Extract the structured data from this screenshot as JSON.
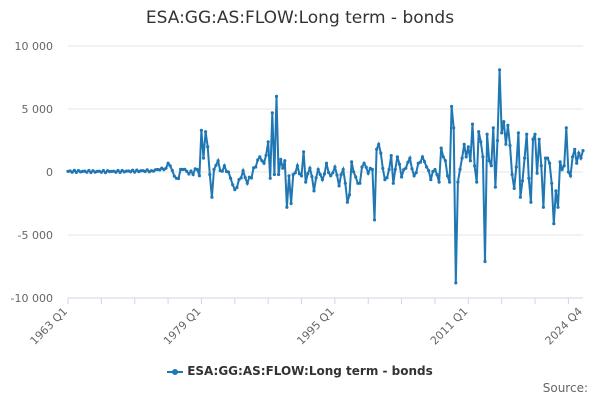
{
  "chart_data": {
    "type": "line",
    "title": "ESA:GG:AS:FLOW:Long term - bonds",
    "xlabel": "",
    "ylabel": "",
    "x_range": [
      "1963 Q1",
      "2024 Q4"
    ],
    "ylim": [
      -10000,
      10000
    ],
    "y_ticks": [
      {
        "value": 10000,
        "label": "10 000"
      },
      {
        "value": 5000,
        "label": "5 000"
      },
      {
        "value": 0,
        "label": "0"
      },
      {
        "value": -5000,
        "label": "-5 000"
      },
      {
        "value": -10000,
        "label": "-10 000"
      }
    ],
    "x_ticks": [
      {
        "t": 0,
        "label": "1963 Q1"
      },
      {
        "t": 64,
        "label": "1979 Q1"
      },
      {
        "t": 128,
        "label": "1995 Q1"
      },
      {
        "t": 192,
        "label": "2011 Q1"
      },
      {
        "t": 247,
        "label": "2024 Q4"
      }
    ],
    "grid": true,
    "legend_position": "bottom-center",
    "series": [
      {
        "name": "ESA:GG:AS:FLOW:Long term - bonds",
        "color": "#1f77b4",
        "key_points": [
          {
            "t": 0,
            "y": 50
          },
          {
            "t": 20,
            "y": 30
          },
          {
            "t": 40,
            "y": 100
          },
          {
            "t": 47,
            "y": 300
          },
          {
            "t": 48,
            "y": 700
          },
          {
            "t": 52,
            "y": -500
          },
          {
            "t": 55,
            "y": 200
          },
          {
            "t": 60,
            "y": -200
          },
          {
            "t": 62,
            "y": 200
          },
          {
            "t": 63,
            "y": -300
          },
          {
            "t": 64,
            "y": 3300
          },
          {
            "t": 65,
            "y": 1100
          },
          {
            "t": 66,
            "y": 3200
          },
          {
            "t": 67,
            "y": 2000
          },
          {
            "t": 68,
            "y": -200
          },
          {
            "t": 69,
            "y": -2000
          },
          {
            "t": 70,
            "y": 200
          },
          {
            "t": 72,
            "y": 900
          },
          {
            "t": 73,
            "y": 100
          },
          {
            "t": 75,
            "y": 500
          },
          {
            "t": 77,
            "y": 0
          },
          {
            "t": 80,
            "y": -1400
          },
          {
            "t": 82,
            "y": -600
          },
          {
            "t": 84,
            "y": 100
          },
          {
            "t": 86,
            "y": -900
          },
          {
            "t": 90,
            "y": 400
          },
          {
            "t": 92,
            "y": 1200
          },
          {
            "t": 94,
            "y": 700
          },
          {
            "t": 96,
            "y": 2400
          },
          {
            "t": 97,
            "y": -500
          },
          {
            "t": 98,
            "y": 4700
          },
          {
            "t": 99,
            "y": -200
          },
          {
            "t": 100,
            "y": 6000
          },
          {
            "t": 101,
            "y": -200
          },
          {
            "t": 102,
            "y": 1000
          },
          {
            "t": 103,
            "y": 300
          },
          {
            "t": 104,
            "y": 900
          },
          {
            "t": 105,
            "y": -2800
          },
          {
            "t": 106,
            "y": -300
          },
          {
            "t": 107,
            "y": -2500
          },
          {
            "t": 108,
            "y": -200
          },
          {
            "t": 110,
            "y": 500
          },
          {
            "t": 112,
            "y": -300
          },
          {
            "t": 113,
            "y": 1600
          },
          {
            "t": 114,
            "y": -800
          },
          {
            "t": 116,
            "y": 300
          },
          {
            "t": 118,
            "y": -1500
          },
          {
            "t": 120,
            "y": 200
          },
          {
            "t": 122,
            "y": -600
          },
          {
            "t": 124,
            "y": 700
          },
          {
            "t": 126,
            "y": -300
          },
          {
            "t": 128,
            "y": 400
          },
          {
            "t": 130,
            "y": -1100
          },
          {
            "t": 132,
            "y": 200
          },
          {
            "t": 134,
            "y": -2400
          },
          {
            "t": 135,
            "y": -1800
          },
          {
            "t": 136,
            "y": 800
          },
          {
            "t": 138,
            "y": -400
          },
          {
            "t": 140,
            "y": -900
          },
          {
            "t": 141,
            "y": 400
          },
          {
            "t": 142,
            "y": 700
          },
          {
            "t": 144,
            "y": -100
          },
          {
            "t": 146,
            "y": 200
          },
          {
            "t": 147,
            "y": -3800
          },
          {
            "t": 148,
            "y": 1800
          },
          {
            "t": 149,
            "y": 2200
          },
          {
            "t": 150,
            "y": 1500
          },
          {
            "t": 152,
            "y": -600
          },
          {
            "t": 154,
            "y": 200
          },
          {
            "t": 155,
            "y": 1300
          },
          {
            "t": 156,
            "y": -900
          },
          {
            "t": 158,
            "y": 1200
          },
          {
            "t": 160,
            "y": -400
          },
          {
            "t": 162,
            "y": 300
          },
          {
            "t": 164,
            "y": 1100
          },
          {
            "t": 166,
            "y": -300
          },
          {
            "t": 168,
            "y": 700
          },
          {
            "t": 170,
            "y": 1200
          },
          {
            "t": 172,
            "y": 400
          },
          {
            "t": 174,
            "y": -600
          },
          {
            "t": 176,
            "y": 200
          },
          {
            "t": 178,
            "y": -800
          },
          {
            "t": 179,
            "y": 1900
          },
          {
            "t": 180,
            "y": 1200
          },
          {
            "t": 181,
            "y": 900
          },
          {
            "t": 182,
            "y": -300
          },
          {
            "t": 183,
            "y": -800
          },
          {
            "t": 184,
            "y": 5200
          },
          {
            "t": 185,
            "y": 3500
          },
          {
            "t": 186,
            "y": -8800
          },
          {
            "t": 187,
            "y": -800
          },
          {
            "t": 188,
            "y": 200
          },
          {
            "t": 189,
            "y": 1100
          },
          {
            "t": 190,
            "y": 2200
          },
          {
            "t": 191,
            "y": 1200
          },
          {
            "t": 192,
            "y": 2000
          },
          {
            "t": 193,
            "y": 900
          },
          {
            "t": 194,
            "y": 3800
          },
          {
            "t": 195,
            "y": 500
          },
          {
            "t": 196,
            "y": -800
          },
          {
            "t": 197,
            "y": 3200
          },
          {
            "t": 198,
            "y": 2400
          },
          {
            "t": 199,
            "y": 1200
          },
          {
            "t": 200,
            "y": -7100
          },
          {
            "t": 201,
            "y": 3000
          },
          {
            "t": 202,
            "y": 900
          },
          {
            "t": 203,
            "y": 500
          },
          {
            "t": 204,
            "y": 3500
          },
          {
            "t": 205,
            "y": -1200
          },
          {
            "t": 206,
            "y": 2500
          },
          {
            "t": 207,
            "y": 8100
          },
          {
            "t": 208,
            "y": 3100
          },
          {
            "t": 209,
            "y": 4000
          },
          {
            "t": 210,
            "y": 2200
          },
          {
            "t": 211,
            "y": 3700
          },
          {
            "t": 212,
            "y": 2100
          },
          {
            "t": 213,
            "y": -200
          },
          {
            "t": 214,
            "y": -1300
          },
          {
            "t": 215,
            "y": 400
          },
          {
            "t": 216,
            "y": 3100
          },
          {
            "t": 217,
            "y": -2000
          },
          {
            "t": 218,
            "y": -700
          },
          {
            "t": 219,
            "y": 1100
          },
          {
            "t": 220,
            "y": 3000
          },
          {
            "t": 221,
            "y": -500
          },
          {
            "t": 222,
            "y": -2400
          },
          {
            "t": 223,
            "y": 2600
          },
          {
            "t": 224,
            "y": 3000
          },
          {
            "t": 225,
            "y": -100
          },
          {
            "t": 226,
            "y": 2600
          },
          {
            "t": 227,
            "y": 500
          },
          {
            "t": 228,
            "y": -2800
          },
          {
            "t": 229,
            "y": 1100
          },
          {
            "t": 230,
            "y": 1100
          },
          {
            "t": 231,
            "y": 700
          },
          {
            "t": 232,
            "y": -900
          },
          {
            "t": 233,
            "y": -4100
          },
          {
            "t": 234,
            "y": -1500
          },
          {
            "t": 235,
            "y": -2800
          },
          {
            "t": 236,
            "y": 800
          },
          {
            "t": 237,
            "y": 200
          },
          {
            "t": 238,
            "y": 500
          },
          {
            "t": 239,
            "y": 3500
          },
          {
            "t": 240,
            "y": 0
          },
          {
            "t": 241,
            "y": -300
          },
          {
            "t": 242,
            "y": 1200
          },
          {
            "t": 243,
            "y": 1800
          },
          {
            "t": 244,
            "y": 700
          },
          {
            "t": 245,
            "y": 1500
          },
          {
            "t": 246,
            "y": 1100
          },
          {
            "t": 247,
            "y": 1700
          }
        ]
      }
    ]
  },
  "legend": {
    "label": "ESA:GG:AS:FLOW:Long term - bonds"
  },
  "source": {
    "label": "Source:"
  }
}
